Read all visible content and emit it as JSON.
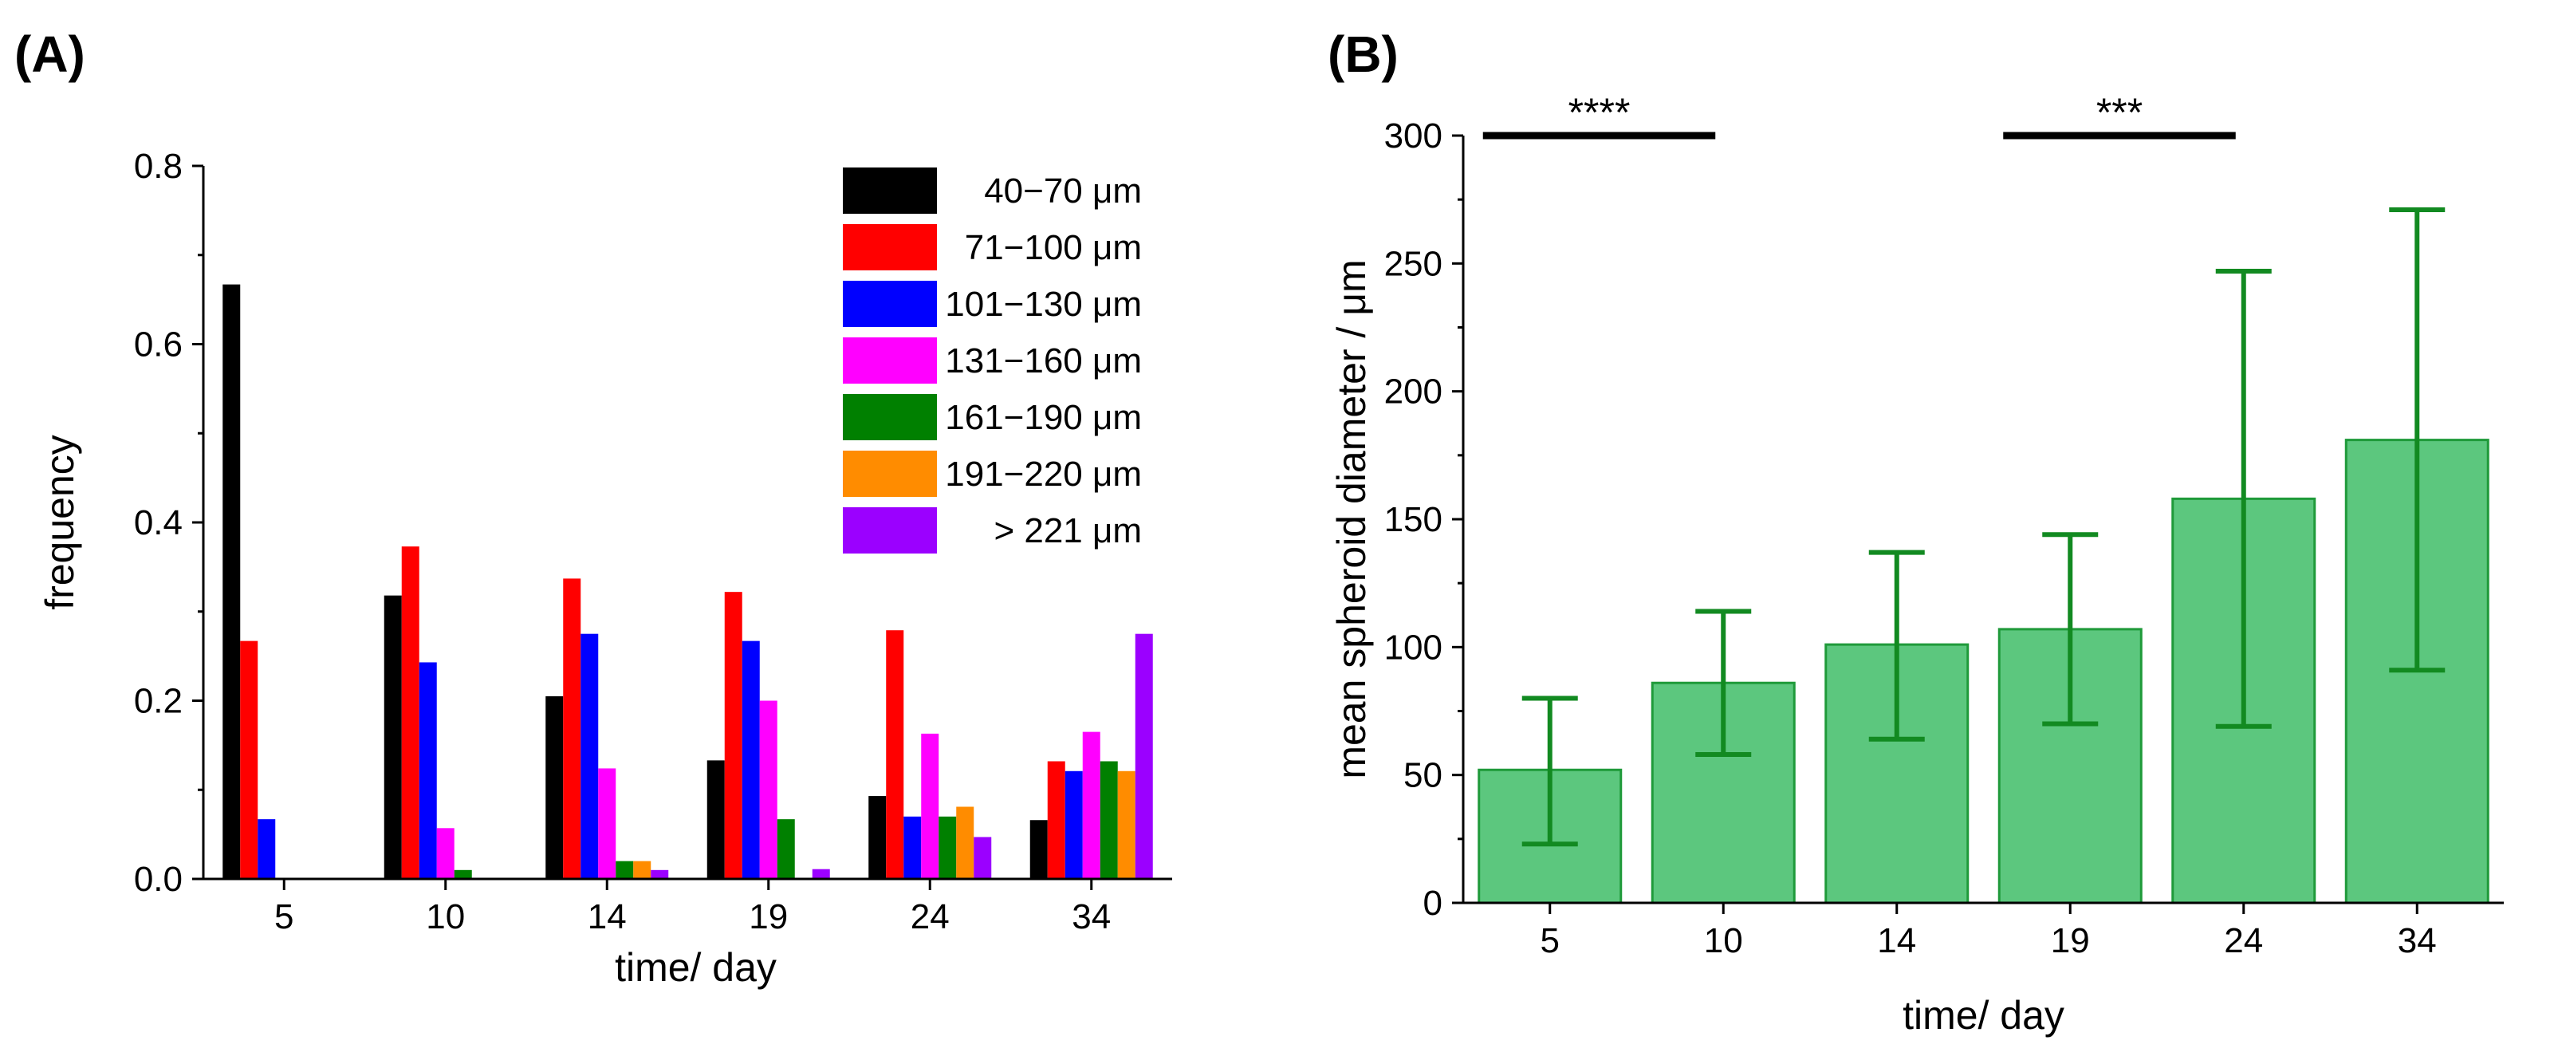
{
  "panels": {
    "a_label": "(A)",
    "b_label": "(B)"
  },
  "chart_data": [
    {
      "type": "bar",
      "panel": "(A)",
      "title": "",
      "xlabel": "time/ day",
      "ylabel": "frequency",
      "categories": [
        "5",
        "10",
        "14",
        "19",
        "24",
        "34"
      ],
      "ylim": [
        0,
        0.8
      ],
      "yticks": [
        0.0,
        0.2,
        0.4,
        0.6,
        0.8
      ],
      "ytick_labels": [
        "0.0",
        "0.2",
        "0.4",
        "0.6",
        "0.8"
      ],
      "legend_position": "top-right",
      "series": [
        {
          "name": "40−70 μm",
          "color": "#000000",
          "values": [
            0.667,
            0.318,
            0.205,
            0.133,
            0.093,
            0.066
          ]
        },
        {
          "name": "71−100 μm",
          "color": "#ff0000",
          "values": [
            0.267,
            0.373,
            0.337,
            0.322,
            0.279,
            0.132
          ]
        },
        {
          "name": "101−130 μm",
          "color": "#0000ff",
          "values": [
            0.067,
            0.243,
            0.275,
            0.267,
            0.07,
            0.121
          ]
        },
        {
          "name": "131−160 μm",
          "color": "#ff00ff",
          "values": [
            0.0,
            0.057,
            0.124,
            0.2,
            0.163,
            0.165
          ]
        },
        {
          "name": "161−190 μm",
          "color": "#008000",
          "values": [
            0.0,
            0.01,
            0.02,
            0.067,
            0.07,
            0.132
          ]
        },
        {
          "name": "191−220 μm",
          "color": "#ff8c00",
          "values": [
            0.0,
            0.0,
            0.02,
            0.0,
            0.081,
            0.121
          ]
        },
        {
          "name": "> 221 μm",
          "color": "#9b00ff",
          "values": [
            0.0,
            0.0,
            0.01,
            0.011,
            0.047,
            0.275
          ]
        }
      ]
    },
    {
      "type": "bar",
      "panel": "(B)",
      "title": "",
      "xlabel": "time/ day",
      "ylabel": "mean spheroid diameter / μm",
      "categories": [
        "5",
        "10",
        "14",
        "19",
        "24",
        "34"
      ],
      "ylim": [
        0,
        300
      ],
      "yticks": [
        0,
        50,
        100,
        150,
        200,
        250,
        300
      ],
      "ytick_labels": [
        "0",
        "50",
        "100",
        "150",
        "200",
        "250",
        "300"
      ],
      "bar_color": "#5cc77e",
      "edge_color": "#1f9a3a",
      "error_color": "#128a21",
      "values": [
        52,
        86,
        101,
        107,
        158,
        181
      ],
      "error_low": [
        23,
        58,
        64,
        70,
        69,
        91
      ],
      "error_high": [
        80,
        114,
        137,
        144,
        247,
        271
      ],
      "significance": [
        {
          "label": "****",
          "from": "5",
          "to": "10",
          "y": 300
        },
        {
          "label": "***",
          "from": "19",
          "to": "24",
          "y": 300
        }
      ]
    }
  ]
}
